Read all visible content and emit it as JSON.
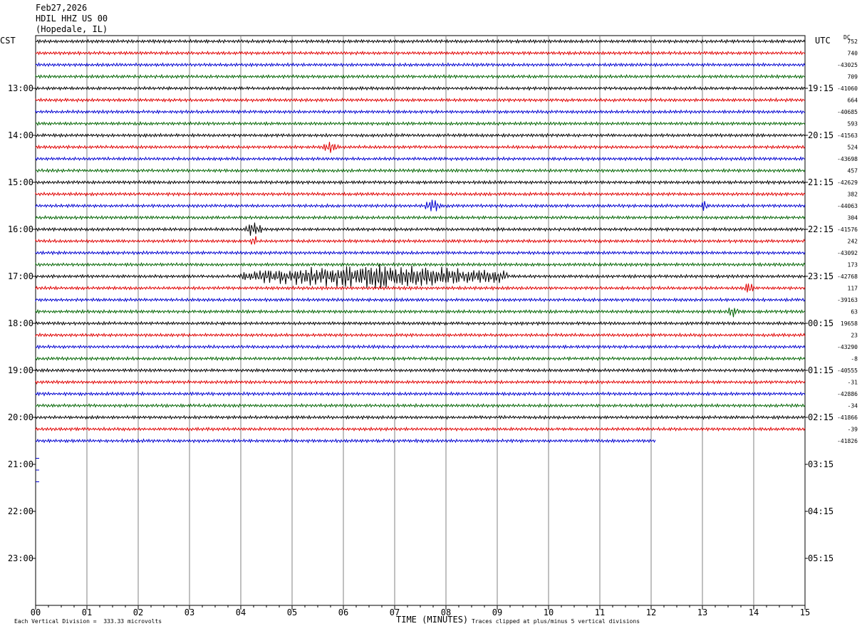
{
  "header": {
    "date": "Feb27,2026",
    "station": "HDIL HHZ US 00",
    "location": "(Hopedale, IL)"
  },
  "left_tz": "CST",
  "right_tz": "UTC",
  "dc_label": "DC",
  "footer": {
    "scale_note": "Each Vertical Division =  333.33 microvolts",
    "xlabel": "TIME (MINUTES)",
    "clip_note": "Traces clipped at plus/minus 5 vertical divisions"
  },
  "chart_data": {
    "type": "line",
    "title": "HDIL HHZ US 00",
    "xlabel": "TIME (MINUTES)",
    "xlim": [
      0,
      15
    ],
    "x_ticks": [
      "00",
      "01",
      "02",
      "03",
      "04",
      "05",
      "06",
      "07",
      "08",
      "09",
      "10",
      "11",
      "12",
      "13",
      "14",
      "15"
    ],
    "rows_per_hour": 4,
    "trace_colors": [
      "#000000",
      "#e00000",
      "#0000d0",
      "#006400"
    ],
    "left_hour_labels": [
      "13:00",
      "14:00",
      "15:00",
      "16:00",
      "17:00",
      "18:00",
      "19:00",
      "20:00",
      "21:00",
      "22:00",
      "23:00"
    ],
    "right_hour_labels": [
      "19:15",
      "20:15",
      "21:15",
      "22:15",
      "23:15",
      "00:15",
      "01:15",
      "02:15",
      "03:15",
      "04:15",
      "05:15"
    ],
    "first_labeled_row": 4,
    "total_rows": 48,
    "traces_drawn": 35,
    "last_trace_end_minute": 12.1,
    "dc_offsets": [
      "752",
      "740",
      "-43025",
      "709",
      "-41060",
      "664",
      "-40685",
      "593",
      "-41563",
      "524",
      "-43698",
      "457",
      "-42629",
      "382",
      "-44063",
      "304",
      "-41576",
      "242",
      "-43092",
      "173",
      "-42768",
      "117",
      "-39163",
      "63",
      "19658",
      "23",
      "-43290",
      "-8",
      "-40555",
      "-31",
      "-42886",
      "-34",
      "-41866",
      "-39",
      "-41826"
    ],
    "events": [
      {
        "row": 16,
        "minute_start": 4.1,
        "minute_end": 4.4,
        "amplitude": 0.45
      },
      {
        "row": 9,
        "minute_start": 5.6,
        "minute_end": 5.9,
        "amplitude": 0.3
      },
      {
        "row": 14,
        "minute_start": 7.6,
        "minute_end": 7.9,
        "amplitude": 0.35
      },
      {
        "row": 14,
        "minute_start": 13.0,
        "minute_end": 13.1,
        "amplitude": 0.4
      },
      {
        "row": 17,
        "minute_start": 4.2,
        "minute_end": 4.3,
        "amplitude": 0.5
      },
      {
        "row": 20,
        "minute_start": 4.0,
        "minute_end": 9.2,
        "amplitude": 0.7
      },
      {
        "row": 21,
        "minute_start": 13.8,
        "minute_end": 14.0,
        "amplitude": 0.3
      },
      {
        "row": 23,
        "minute_start": 13.5,
        "minute_end": 13.7,
        "amplitude": 0.35
      }
    ]
  }
}
